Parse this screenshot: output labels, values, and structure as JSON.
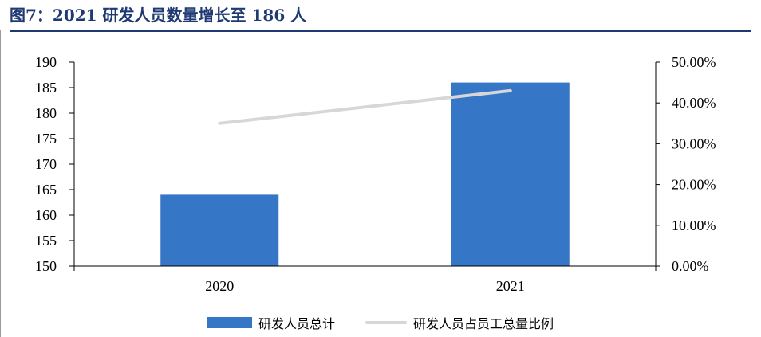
{
  "title": "图7：2021 研发人员数量增长至 186 人",
  "colors": {
    "bar": "#3576c6",
    "line": "#d7d7d7",
    "title": "#1f3a73"
  },
  "chart_data": {
    "type": "bar",
    "categories": [
      "2020",
      "2021"
    ],
    "series": [
      {
        "name": "研发人员总计",
        "type": "bar",
        "axis": "left",
        "values": [
          164,
          186
        ]
      },
      {
        "name": "研发人员占员工总量比例",
        "type": "line",
        "axis": "right",
        "values": [
          0.35,
          0.43
        ]
      }
    ],
    "y_left": {
      "min": 150,
      "max": 190,
      "ticks": [
        "150",
        "155",
        "160",
        "165",
        "170",
        "175",
        "180",
        "185",
        "190"
      ]
    },
    "y_right": {
      "min": 0,
      "max": 0.5,
      "ticks": [
        "0.00%",
        "10.00%",
        "20.00%",
        "30.00%",
        "40.00%",
        "50.00%"
      ]
    },
    "legend_position": "bottom",
    "grid": false
  }
}
